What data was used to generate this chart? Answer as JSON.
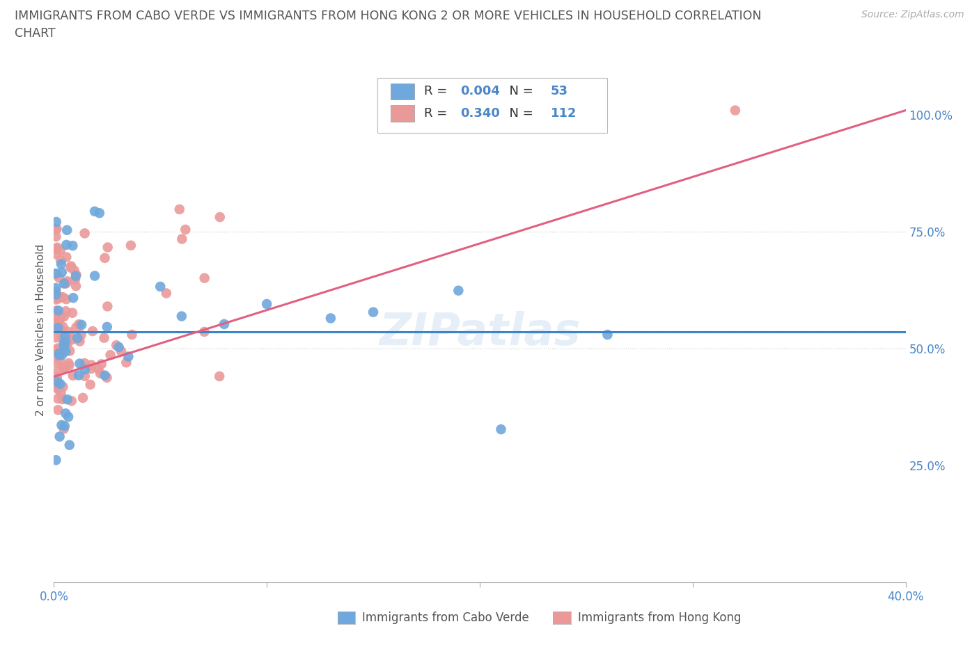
{
  "title_line1": "IMMIGRANTS FROM CABO VERDE VS IMMIGRANTS FROM HONG KONG 2 OR MORE VEHICLES IN HOUSEHOLD CORRELATION",
  "title_line2": "CHART",
  "source": "Source: ZipAtlas.com",
  "ylabel": "2 or more Vehicles in Household",
  "xlim": [
    0.0,
    0.4
  ],
  "ylim": [
    0.0,
    1.08
  ],
  "cabo_verde_color": "#6fa8dc",
  "hong_kong_color": "#ea9999",
  "cabo_verde_line_color": "#3d85c8",
  "hong_kong_line_color": "#e06080",
  "cabo_verde_R": 0.004,
  "cabo_verde_N": 53,
  "hong_kong_R": 0.34,
  "hong_kong_N": 112,
  "legend_label_1": "Immigrants from Cabo Verde",
  "legend_label_2": "Immigrants from Hong Kong",
  "watermark": "ZIPatlas",
  "r_text_color": "#4a86c8",
  "axis_text_color": "#4a86c8",
  "grid_color": "#cccccc",
  "title_color": "#555555",
  "label_color": "#555555"
}
